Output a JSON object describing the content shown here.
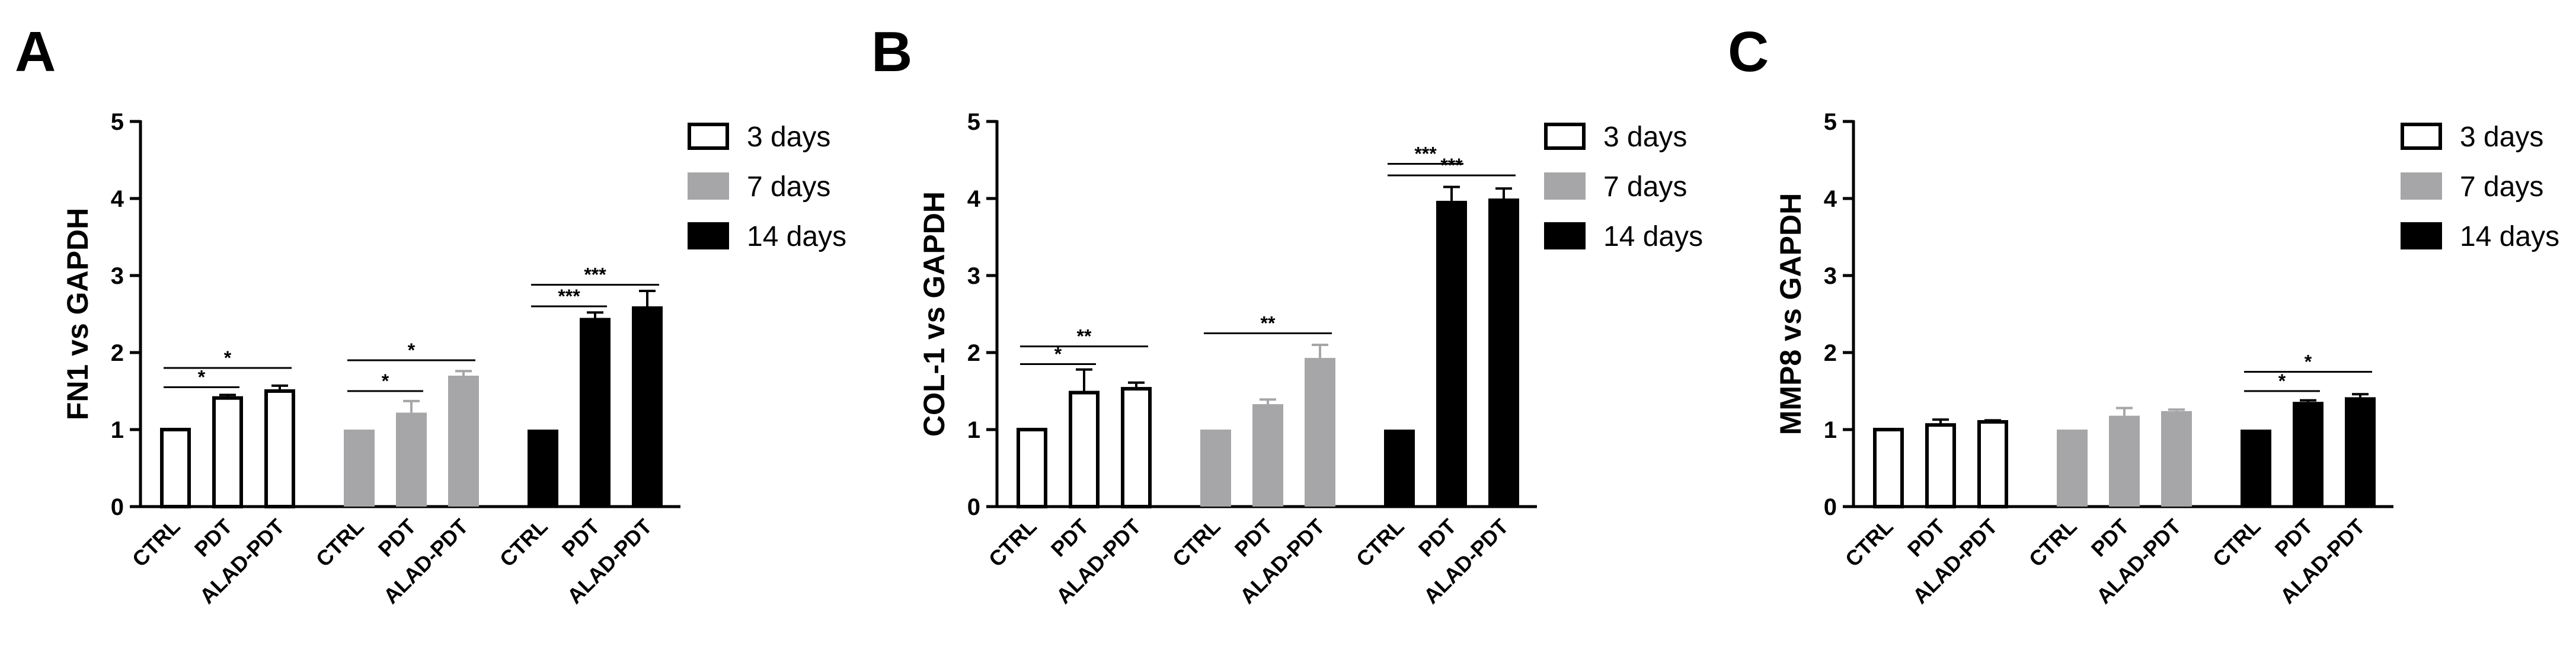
{
  "chart_data": [
    {
      "type": "bar",
      "panel": "A",
      "ylabel": "FN1 vs GAPDH",
      "ylim": [
        0,
        5
      ],
      "yticks": [
        0,
        1,
        2,
        3,
        4,
        5
      ],
      "groups": [
        {
          "name": "3 days",
          "style": "open",
          "categories": [
            "CTRL",
            "PDT",
            "ALAD-PDT"
          ],
          "values": [
            1.0,
            1.41,
            1.5
          ],
          "errors": [
            0,
            0.04,
            0.07
          ]
        },
        {
          "name": "7 days",
          "style": "gray",
          "categories": [
            "CTRL",
            "PDT",
            "ALAD-PDT"
          ],
          "values": [
            1.0,
            1.22,
            1.7
          ],
          "errors": [
            0,
            0.15,
            0.06
          ]
        },
        {
          "name": "14 days",
          "style": "black",
          "categories": [
            "CTRL",
            "PDT",
            "ALAD-PDT"
          ],
          "values": [
            1.0,
            2.45,
            2.6
          ],
          "errors": [
            0,
            0.07,
            0.2
          ]
        }
      ],
      "significance": [
        {
          "group": 0,
          "from": 0,
          "to": 1,
          "y": 1.55,
          "label": "*"
        },
        {
          "group": 0,
          "from": 0,
          "to": 2,
          "y": 1.8,
          "label": "*"
        },
        {
          "group": 1,
          "from": 0,
          "to": 1,
          "y": 1.5,
          "label": "*"
        },
        {
          "group": 1,
          "from": 0,
          "to": 2,
          "y": 1.9,
          "label": "*"
        },
        {
          "group": 2,
          "from": 0,
          "to": 1,
          "y": 2.6,
          "label": "***"
        },
        {
          "group": 2,
          "from": 0,
          "to": 2,
          "y": 2.88,
          "label": "***"
        }
      ]
    },
    {
      "type": "bar",
      "panel": "B",
      "ylabel": "COL-1 vs GAPDH",
      "ylim": [
        0,
        5
      ],
      "yticks": [
        0,
        1,
        2,
        3,
        4,
        5
      ],
      "groups": [
        {
          "name": "3 days",
          "style": "open",
          "categories": [
            "CTRL",
            "PDT",
            "ALAD-PDT"
          ],
          "values": [
            1.0,
            1.48,
            1.53
          ],
          "errors": [
            0,
            0.3,
            0.08
          ]
        },
        {
          "name": "7 days",
          "style": "gray",
          "categories": [
            "CTRL",
            "PDT",
            "ALAD-PDT"
          ],
          "values": [
            1.0,
            1.33,
            1.93
          ],
          "errors": [
            0,
            0.06,
            0.17
          ]
        },
        {
          "name": "14 days",
          "style": "black",
          "categories": [
            "CTRL",
            "PDT",
            "ALAD-PDT"
          ],
          "values": [
            1.0,
            3.97,
            4.0
          ],
          "errors": [
            0,
            0.18,
            0.13
          ]
        }
      ],
      "significance": [
        {
          "group": 0,
          "from": 0,
          "to": 1,
          "y": 1.85,
          "label": "*"
        },
        {
          "group": 0,
          "from": 0,
          "to": 2,
          "y": 2.08,
          "label": "**"
        },
        {
          "group": 1,
          "from": 0,
          "to": 2,
          "y": 2.25,
          "label": "**"
        },
        {
          "group": 2,
          "from": 0,
          "to": 1,
          "y": 4.45,
          "label": "***"
        },
        {
          "group": 2,
          "from": 0,
          "to": 2,
          "y": 4.3,
          "label": "***"
        }
      ]
    },
    {
      "type": "bar",
      "panel": "C",
      "ylabel": "MMP8 vs GAPDH",
      "ylim": [
        0,
        5
      ],
      "yticks": [
        0,
        1,
        2,
        3,
        4,
        5
      ],
      "groups": [
        {
          "name": "3 days",
          "style": "open",
          "categories": [
            "CTRL",
            "PDT",
            "ALAD-PDT"
          ],
          "values": [
            1.0,
            1.06,
            1.1
          ],
          "errors": [
            0,
            0.07,
            0.02
          ]
        },
        {
          "name": "7 days",
          "style": "gray",
          "categories": [
            "CTRL",
            "PDT",
            "ALAD-PDT"
          ],
          "values": [
            1.0,
            1.18,
            1.24
          ],
          "errors": [
            0,
            0.1,
            0.02
          ]
        },
        {
          "name": "14 days",
          "style": "black",
          "categories": [
            "CTRL",
            "PDT",
            "ALAD-PDT"
          ],
          "values": [
            1.0,
            1.36,
            1.42
          ],
          "errors": [
            0,
            0.02,
            0.04
          ]
        }
      ],
      "significance": [
        {
          "group": 2,
          "from": 0,
          "to": 1,
          "y": 1.5,
          "label": "*"
        },
        {
          "group": 2,
          "from": 0,
          "to": 2,
          "y": 1.75,
          "label": "*"
        }
      ]
    }
  ],
  "legend": [
    "3 days",
    "7 days",
    "14 days"
  ],
  "colors": {
    "open": "#ffffff",
    "gray": "#a6a6a8",
    "black": "#000000",
    "stroke": "#000000"
  }
}
